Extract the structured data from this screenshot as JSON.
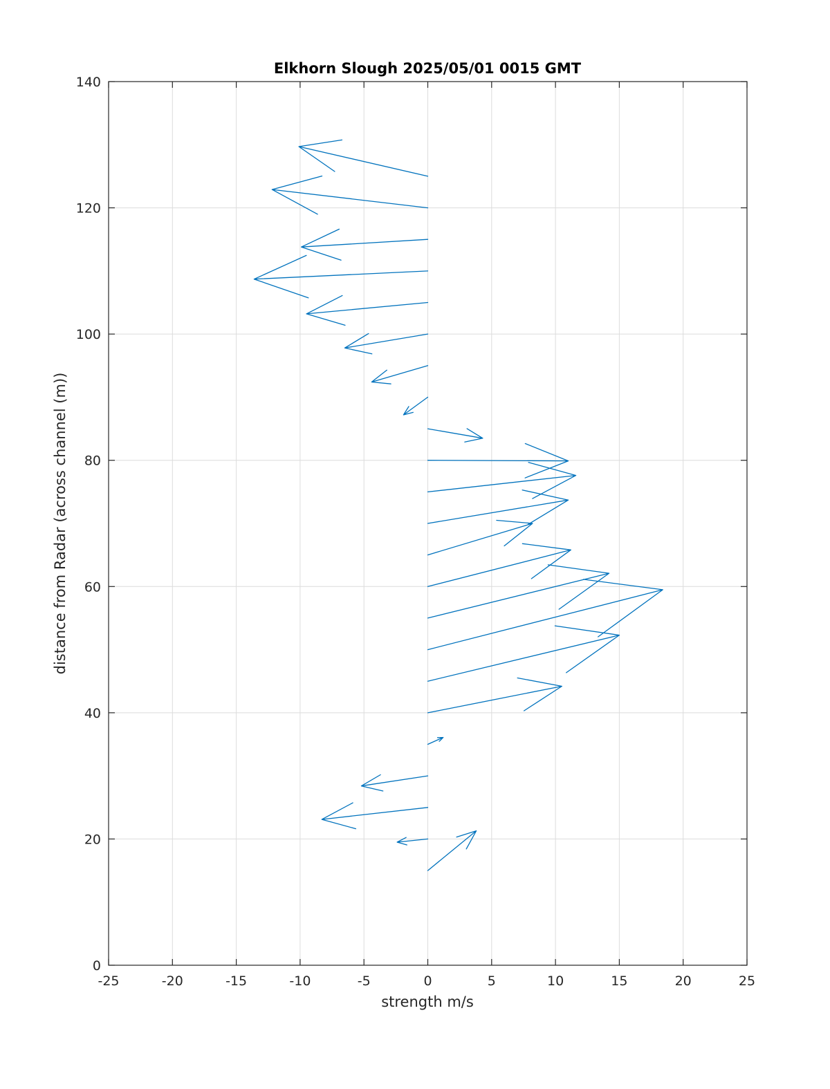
{
  "chart_data": {
    "type": "quiver",
    "title": "Elkhorn Slough 2025/05/01 0015 GMT",
    "xlabel": "strength m/s",
    "ylabel": "distance from Radar (across channel (m))",
    "xlim": [
      -25,
      25
    ],
    "ylim": [
      0,
      140
    ],
    "xticks": [
      -25,
      -20,
      -15,
      -10,
      -5,
      0,
      5,
      10,
      15,
      20,
      25
    ],
    "yticks": [
      0,
      20,
      40,
      60,
      80,
      100,
      120,
      140
    ],
    "grid": true,
    "series_color": "#0072bd",
    "vectors": [
      {
        "y": 15,
        "u": 3.8,
        "v": 6.3
      },
      {
        "y": 20,
        "u": -2.4,
        "v": -0.5
      },
      {
        "y": 25,
        "u": -8.3,
        "v": -1.9
      },
      {
        "y": 30,
        "u": -5.2,
        "v": -1.6
      },
      {
        "y": 35,
        "u": 1.2,
        "v": 1.1
      },
      {
        "y": 40,
        "u": 10.5,
        "v": 4.2
      },
      {
        "y": 45,
        "u": 15.0,
        "v": 7.3
      },
      {
        "y": 50,
        "u": 18.4,
        "v": 9.5
      },
      {
        "y": 55,
        "u": 14.2,
        "v": 7.1
      },
      {
        "y": 60,
        "u": 11.2,
        "v": 5.8
      },
      {
        "y": 65,
        "u": 8.2,
        "v": 5.0
      },
      {
        "y": 70,
        "u": 11.0,
        "v": 3.7
      },
      {
        "y": 75,
        "u": 11.6,
        "v": 2.6
      },
      {
        "y": 80,
        "u": 11.0,
        "v": -0.1
      },
      {
        "y": 85,
        "u": 4.3,
        "v": -1.5
      },
      {
        "y": 90,
        "u": -1.9,
        "v": -2.8
      },
      {
        "y": 95,
        "u": -4.4,
        "v": -2.6
      },
      {
        "y": 100,
        "u": -6.5,
        "v": -2.2
      },
      {
        "y": 105,
        "u": -9.5,
        "v": -1.8
      },
      {
        "y": 110,
        "u": -13.6,
        "v": -1.3
      },
      {
        "y": 115,
        "u": -9.9,
        "v": -1.2
      },
      {
        "y": 120,
        "u": -12.2,
        "v": 2.9
      },
      {
        "y": 125,
        "u": -10.1,
        "v": 4.7
      }
    ]
  }
}
